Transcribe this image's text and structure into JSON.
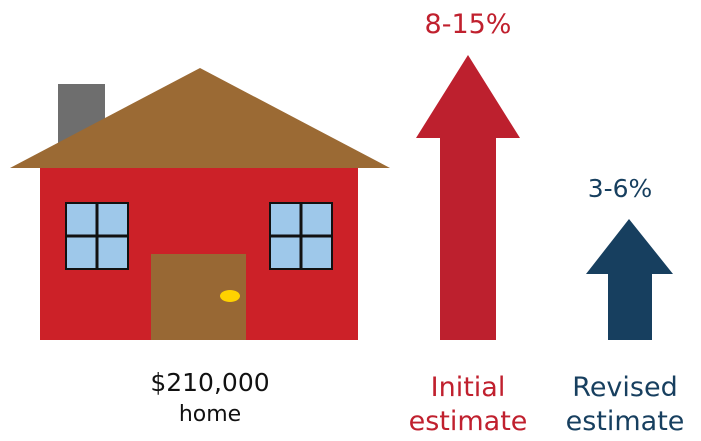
{
  "house": {
    "price": "$210,000",
    "caption": "home"
  },
  "initial": {
    "range": "8-15%",
    "label_line1": "Initial",
    "label_line2": "estimate",
    "color": "#c0202e"
  },
  "revised": {
    "range": "3-6%",
    "label_line1": "Revised",
    "label_line2": "estimate",
    "color": "#173f5f"
  },
  "colors": {
    "house_wall": "#cc2128",
    "roof": "#9b6a34",
    "chimney": "#6e6e6e",
    "window_glass": "#9ec8ea",
    "door": "#986834",
    "door_knob": "#ffd200"
  },
  "icons": {
    "house": "house-icon",
    "initial_arrow": "up-arrow-icon",
    "revised_arrow": "up-arrow-icon"
  }
}
